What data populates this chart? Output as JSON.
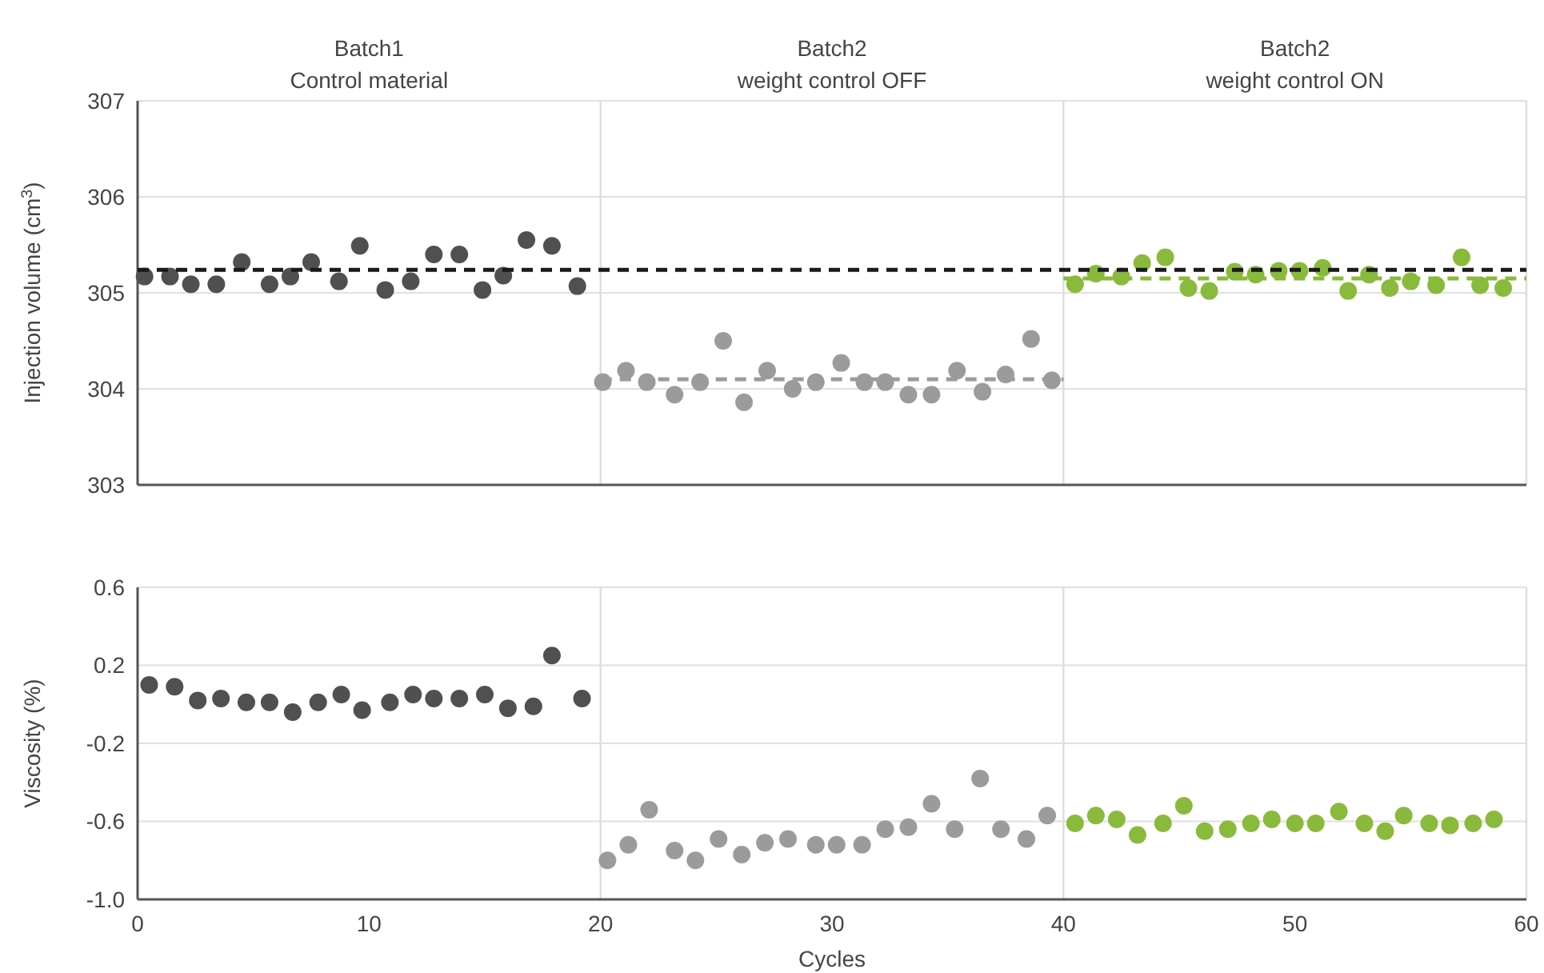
{
  "chart_data": [
    {
      "type": "scatter",
      "ylabel": "Injection volume (cm$^{3}$)",
      "annotations": [
        "Batch1\nControl material",
        "Batch2\nweight control OFF",
        "Batch2\nweight control ON"
      ],
      "xlim": [
        0,
        60
      ],
      "ylim": [
        303,
        307
      ],
      "yticks": [
        303,
        304,
        305,
        306,
        307
      ],
      "tick_labels": "y",
      "grid": "y",
      "marker": "circle",
      "ref_lines": [
        {
          "axis": "x",
          "value": 20,
          "color": "#dddddd"
        },
        {
          "axis": "x",
          "value": 40,
          "color": "#dddddd"
        }
      ],
      "series": [
        {
          "color": "#505050",
          "x": [
            0.3,
            1.4,
            2.3,
            3.4,
            4.5,
            5.7,
            6.6,
            7.5,
            8.7,
            9.6,
            10.7,
            11.8,
            12.8,
            13.9,
            14.9,
            15.8,
            16.8,
            17.9,
            19.0
          ],
          "values": [
            305.17,
            305.17,
            305.09,
            305.09,
            305.32,
            305.09,
            305.17,
            305.32,
            305.12,
            305.49,
            305.03,
            305.12,
            305.4,
            305.4,
            305.03,
            305.18,
            305.55,
            305.49,
            305.07
          ]
        },
        {
          "color": "#9b9b9b",
          "x": [
            20.1,
            21.1,
            22.0,
            23.2,
            24.3,
            25.3,
            26.2,
            27.2,
            28.3,
            29.3,
            30.4,
            31.4,
            32.3,
            33.3,
            34.3,
            35.4,
            36.5,
            37.5,
            38.6,
            39.5
          ],
          "values": [
            304.07,
            304.19,
            304.07,
            303.94,
            304.07,
            304.5,
            303.86,
            304.19,
            304.0,
            304.07,
            304.27,
            304.07,
            304.07,
            303.94,
            303.94,
            304.19,
            303.97,
            304.15,
            304.52,
            304.09
          ]
        },
        {
          "color": "#8aba3c",
          "x": [
            40.5,
            41.4,
            42.5,
            43.4,
            44.4,
            45.4,
            46.3,
            47.4,
            48.3,
            49.3,
            50.2,
            51.2,
            52.3,
            53.2,
            54.1,
            55.0,
            56.1,
            57.2,
            58.0,
            59.0
          ],
          "values": [
            305.09,
            305.2,
            305.17,
            305.31,
            305.37,
            305.05,
            305.02,
            305.22,
            305.19,
            305.23,
            305.23,
            305.26,
            305.02,
            305.19,
            305.05,
            305.12,
            305.08,
            305.37,
            305.08,
            305.05
          ]
        },
        {
          "type": "line",
          "color": "#1a1a1a",
          "line_style": "dashed",
          "marker": "none",
          "x": [
            0,
            60
          ],
          "values": [
            305.24,
            305.24
          ]
        },
        {
          "type": "line",
          "color": "#9b9b9b",
          "line_style": "dashed",
          "marker": "none",
          "x": [
            20,
            40
          ],
          "values": [
            304.1,
            304.1
          ]
        },
        {
          "type": "line",
          "color": "#8aba3c",
          "line_style": "dashed",
          "marker": "none",
          "x": [
            40,
            60
          ],
          "values": [
            305.15,
            305.15
          ]
        }
      ]
    },
    {
      "type": "scatter",
      "ylabel": "Viscosity (%)",
      "xlabel": "Cycles",
      "xlim": [
        0,
        60
      ],
      "xticks": [
        0,
        10,
        20,
        30,
        40,
        50,
        60
      ],
      "ylim": [
        -1.0,
        0.6
      ],
      "yticks": [
        {
          "value": -1.0,
          "label": "-1.0"
        },
        {
          "value": -0.6,
          "label": "-0.6"
        },
        {
          "value": -0.2,
          "label": "-0.2"
        },
        {
          "value": 0.2,
          "label": "0.2"
        },
        {
          "value": 0.6,
          "label": "0.6"
        }
      ],
      "grid": "y",
      "marker": "circle",
      "ref_lines": [
        {
          "axis": "x",
          "value": 20,
          "color": "#dddddd"
        },
        {
          "axis": "x",
          "value": 40,
          "color": "#dddddd"
        }
      ],
      "series": [
        {
          "color": "#505050",
          "x": [
            0.5,
            1.6,
            2.6,
            3.6,
            4.7,
            5.7,
            6.7,
            7.8,
            8.8,
            9.7,
            10.9,
            11.9,
            12.8,
            13.9,
            15.0,
            16.0,
            17.1,
            17.9,
            19.2
          ],
          "values": [
            0.1,
            0.09,
            0.02,
            0.03,
            0.01,
            0.01,
            -0.04,
            0.01,
            0.05,
            -0.03,
            0.01,
            0.05,
            0.03,
            0.03,
            0.05,
            -0.02,
            -0.01,
            0.25,
            0.03
          ]
        },
        {
          "color": "#9b9b9b",
          "x": [
            20.3,
            21.2,
            22.1,
            23.2,
            24.1,
            25.1,
            26.1,
            27.1,
            28.1,
            29.3,
            30.2,
            31.3,
            32.3,
            33.3,
            34.3,
            35.3,
            36.4,
            37.3,
            38.4,
            39.3
          ],
          "values": [
            -0.8,
            -0.72,
            -0.54,
            -0.75,
            -0.8,
            -0.69,
            -0.77,
            -0.71,
            -0.69,
            -0.72,
            -0.72,
            -0.72,
            -0.64,
            -0.63,
            -0.51,
            -0.64,
            -0.38,
            -0.64,
            -0.69,
            -0.57
          ]
        },
        {
          "color": "#8aba3c",
          "x": [
            40.5,
            41.4,
            42.3,
            43.2,
            44.3,
            45.2,
            46.1,
            47.1,
            48.1,
            49.0,
            50.0,
            50.9,
            51.9,
            53.0,
            53.9,
            54.7,
            55.8,
            56.7,
            57.7,
            58.6
          ],
          "values": [
            -0.61,
            -0.57,
            -0.59,
            -0.67,
            -0.61,
            -0.52,
            -0.65,
            -0.64,
            -0.61,
            -0.59,
            -0.61,
            -0.61,
            -0.55,
            -0.61,
            -0.65,
            -0.57,
            -0.61,
            -0.62,
            -0.61,
            -0.59
          ]
        }
      ]
    }
  ]
}
